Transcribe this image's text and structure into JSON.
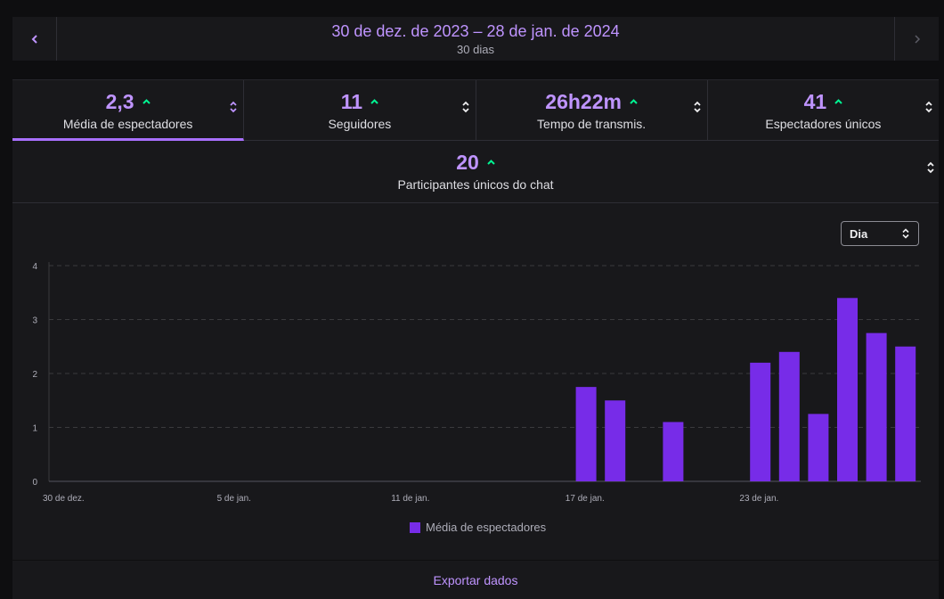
{
  "date_range": {
    "title": "30 de dez. de 2023 – 28 de jan. de 2024",
    "subtitle": "30 dias"
  },
  "stats": [
    {
      "value": "2,3",
      "label": "Média de espectadores",
      "active": true
    },
    {
      "value": "11",
      "label": "Seguidores",
      "active": false
    },
    {
      "value": "26h22m",
      "label": "Tempo de transmis.",
      "active": false
    },
    {
      "value": "41",
      "label": "Espectadores únicos",
      "active": false
    }
  ],
  "chat_stat": {
    "value": "20",
    "label": "Participantes únicos do chat"
  },
  "granularity": {
    "selected": "Dia"
  },
  "export": {
    "label": "Exportar dados"
  },
  "colors": {
    "accent": "#bf94ff",
    "bar": "#772ce8",
    "trend_up": "#00f593"
  },
  "icons": {
    "prev": "chevron-left-icon",
    "next": "chevron-right-icon",
    "trend": "arrow-up-icon",
    "sort": "sort-icon"
  },
  "chart_data": {
    "type": "bar",
    "title": "",
    "xlabel": "",
    "ylabel": "",
    "ylim": [
      0,
      4
    ],
    "yticks": [
      0,
      1,
      2,
      3,
      4
    ],
    "x_tick_labels": [
      {
        "day_index": 0,
        "label": "30 de dez."
      },
      {
        "day_index": 6,
        "label": "5 de jan."
      },
      {
        "day_index": 12,
        "label": "11 de jan."
      },
      {
        "day_index": 18,
        "label": "17 de jan."
      },
      {
        "day_index": 24,
        "label": "23 de jan."
      }
    ],
    "categories": [
      "30 de dez.",
      "31 de dez.",
      "1 de jan.",
      "2 de jan.",
      "3 de jan.",
      "4 de jan.",
      "5 de jan.",
      "6 de jan.",
      "7 de jan.",
      "8 de jan.",
      "9 de jan.",
      "10 de jan.",
      "11 de jan.",
      "12 de jan.",
      "13 de jan.",
      "14 de jan.",
      "15 de jan.",
      "16 de jan.",
      "17 de jan.",
      "18 de jan.",
      "19 de jan.",
      "20 de jan.",
      "21 de jan.",
      "22 de jan.",
      "23 de jan.",
      "24 de jan.",
      "25 de jan.",
      "26 de jan.",
      "27 de jan.",
      "28 de jan."
    ],
    "series": [
      {
        "name": "Média de espectadores",
        "values": [
          0,
          0,
          0,
          0,
          0,
          0,
          0,
          0,
          0,
          0,
          0,
          0,
          0,
          0,
          0,
          0,
          0,
          0,
          1.75,
          1.5,
          0,
          1.1,
          0,
          0,
          2.2,
          2.4,
          1.25,
          3.4,
          2.75,
          2.5
        ]
      }
    ],
    "legend": "bottom-center",
    "grid": true
  }
}
